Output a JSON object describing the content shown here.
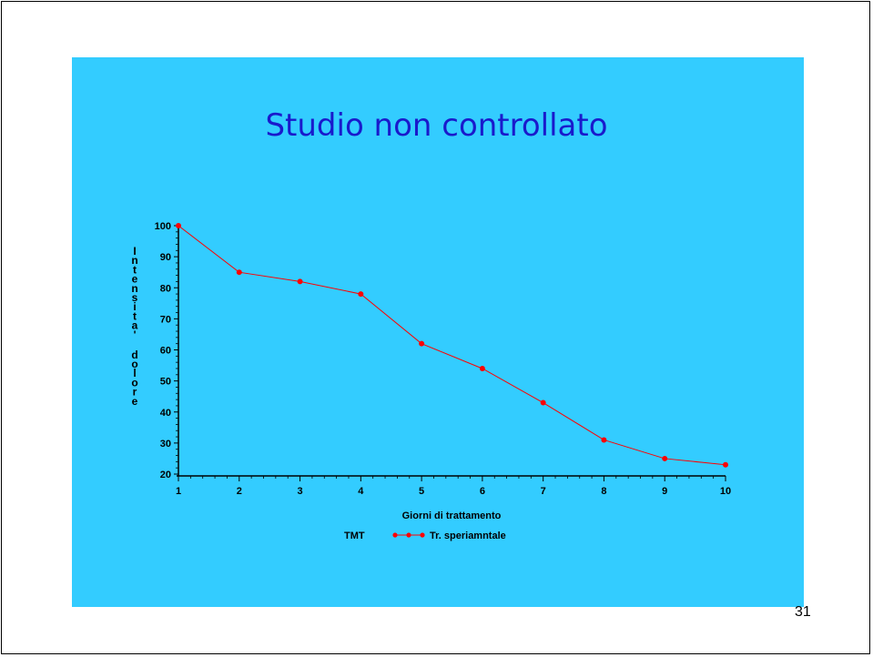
{
  "slide": {
    "title": "Studio non controllato",
    "page_number": "31",
    "background": "#33ccff",
    "title_color": "#1a1acc"
  },
  "chart_data": {
    "type": "line",
    "title": "",
    "xlabel": "Giorni di trattamento",
    "ylabel": "Intensita' dolore",
    "x": [
      1,
      2,
      3,
      4,
      5,
      6,
      7,
      8,
      9,
      10
    ],
    "xlim": [
      1,
      10
    ],
    "ylim": [
      20,
      100
    ],
    "yticks": [
      20,
      30,
      40,
      50,
      60,
      70,
      80,
      90,
      100
    ],
    "grid": false,
    "legend": {
      "title": "TMT",
      "placement": "bottom-center"
    },
    "series": [
      {
        "name": "Tr. speriamntale",
        "color": "#ff0000",
        "marker": "circle",
        "values": [
          100,
          85,
          82,
          78,
          62,
          54,
          43,
          31,
          25,
          23
        ]
      }
    ]
  }
}
